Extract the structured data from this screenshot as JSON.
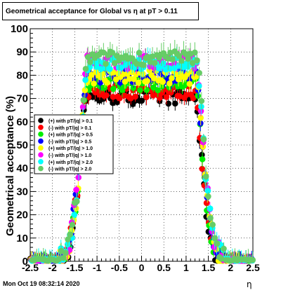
{
  "header": {
    "title": "Geometrical acceptance for Global vs  η at pT > 0.11"
  },
  "footer": {
    "date": "Mon Oct 19 08:32:14 2020",
    "x_unit": "η"
  },
  "chart_data": {
    "type": "scatter",
    "title": "Geometrical acceptance for Global vs  η at pT > 0.11",
    "xlabel": "η",
    "ylabel": "Geometrical acceptance (%)",
    "xlim": [
      -2.5,
      2.5
    ],
    "ylim": [
      0,
      100
    ],
    "x_ticks": [
      "-2.5",
      "-2",
      "-1.5",
      "-1",
      "-0.5",
      "0",
      "0.5",
      "1",
      "1.5",
      "2",
      "2.5"
    ],
    "y_ticks": [
      "0",
      "10",
      "20",
      "30",
      "40",
      "50",
      "60",
      "70",
      "80",
      "90",
      "100"
    ],
    "grid": true,
    "legend_position": "middle-left",
    "series": [
      {
        "name": "(+) with pT/|q| > 0.1",
        "color": "#000000",
        "plateau": 72
      },
      {
        "name": "(-) with pT/|q| > 0.1",
        "color": "#ff0000",
        "plateau": 74
      },
      {
        "name": "(+) with pT/|q| > 0.5",
        "color": "#00ee00",
        "plateau": 77
      },
      {
        "name": "(-) with pT/|q| > 0.5",
        "color": "#0000ff",
        "plateau": 80
      },
      {
        "name": "(+) with pT/|q| > 1.0",
        "color": "#ffff00",
        "plateau": 79
      },
      {
        "name": "(-) with pT/|q| > 1.0",
        "color": "#ff00ff",
        "plateau": 85
      },
      {
        "name": "(+) with pT/|q| > 2.0",
        "color": "#00ffff",
        "plateau": 84
      },
      {
        "name": "(-) with pT/|q| > 2.0",
        "color": "#66cc66",
        "plateau": 86
      }
    ]
  }
}
